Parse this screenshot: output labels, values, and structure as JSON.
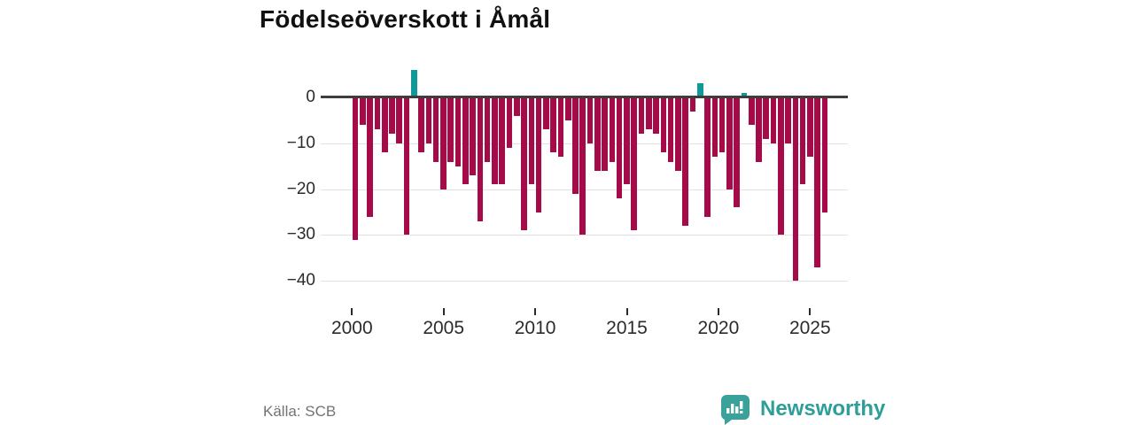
{
  "title": "Födelseöverskott i Åmål",
  "source": {
    "text": "Källa: SCB"
  },
  "brand": {
    "name": "Newsworthy",
    "icon": "bar-chart-speech-bubble"
  },
  "colors": {
    "negative_bar": "#a50b49",
    "positive_bar": "#11999a",
    "zero_line": "#3d3d3d",
    "gridline": "#e2e2e2",
    "axis_text": "#2b2b2b",
    "source_text": "#737373",
    "brand_teal": "#2e9e99"
  },
  "chart_data": {
    "type": "bar",
    "title": "Födelseöverskott i Åmål",
    "xlabel": "",
    "ylabel": "",
    "grid": "horizontal",
    "legend": "none",
    "ylim": [
      -43,
      8
    ],
    "y_ticks": [
      {
        "value": 0,
        "label": "0"
      },
      {
        "value": -10,
        "label": "−10"
      },
      {
        "value": -20,
        "label": "−20"
      },
      {
        "value": -30,
        "label": "−30"
      },
      {
        "value": -40,
        "label": "−40"
      }
    ],
    "x_ticks": [
      2000,
      2005,
      2010,
      2015,
      2020,
      2025
    ],
    "x_tick_labels": [
      "2000",
      "2005",
      "2010",
      "2015",
      "2020",
      "2025"
    ],
    "x": [
      2000,
      2000.4,
      2000.8,
      2001.2,
      2001.6,
      2002,
      2002.4,
      2002.8,
      2003.2,
      2003.6,
      2004,
      2004.4,
      2004.8,
      2005.2,
      2005.6,
      2006,
      2006.4,
      2006.8,
      2007.2,
      2007.6,
      2008,
      2008.4,
      2008.8,
      2009.2,
      2009.6,
      2010,
      2010.4,
      2010.8,
      2011.2,
      2011.6,
      2012,
      2012.4,
      2012.8,
      2013.2,
      2013.6,
      2014,
      2014.4,
      2014.8,
      2015.2,
      2015.6,
      2016,
      2016.4,
      2016.8,
      2017.2,
      2017.6,
      2018,
      2018.4,
      2018.8,
      2019.2,
      2019.6,
      2020,
      2020.4,
      2020.8,
      2021.2,
      2021.6,
      2022,
      2022.4,
      2022.8,
      2023.2,
      2023.6,
      2024,
      2024.4,
      2024.8,
      2025.2,
      2025.6
    ],
    "values": [
      -31,
      -6,
      -26,
      -7,
      -12,
      -8,
      -10,
      -30,
      6,
      -12,
      -10,
      -14,
      -20,
      -14,
      -15,
      -19,
      -17,
      -27,
      -14,
      -19,
      -19,
      -11,
      -4,
      -29,
      -19,
      -25,
      -7,
      -12,
      -13,
      -5,
      -21,
      -30,
      -10,
      -16,
      -16,
      -14,
      -22,
      -19,
      -29,
      -8,
      -7,
      -8,
      -12,
      -14,
      -16,
      -28,
      -3,
      3,
      -26,
      -13,
      -12,
      -20,
      -24,
      1,
      -6,
      -14,
      -9,
      -10,
      -30,
      -10,
      -40,
      -19,
      -13,
      -37,
      -25
    ]
  }
}
